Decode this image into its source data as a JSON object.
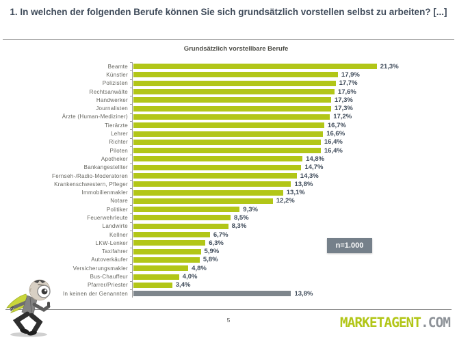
{
  "slide": {
    "title": "1. In welchen der folgenden Berufe können Sie sich grundsätzlich vorstellen selbst zu arbeiten? [...]",
    "page_number": "5",
    "logo": {
      "primary": "MARKETAGENT",
      "suffix": ".COM"
    }
  },
  "chart_data": {
    "type": "bar",
    "orientation": "horizontal",
    "title": "Grundsätzlich vorstellbare Berufe",
    "sample_size_label": "n=1.000",
    "xlim": [
      0,
      21.5
    ],
    "grid": false,
    "legend": false,
    "categories": [
      "Beamte",
      "Künstler",
      "Polizisten",
      "Rechtsanwälte",
      "Handwerker",
      "Journalisten",
      "Ärzte (Human-Mediziner)",
      "Tierärzte",
      "Lehrer",
      "Richter",
      "Piloten",
      "Apotheker",
      "Bankangestellter",
      "Fernseh-/Radio-Moderatoren",
      "Krankenschwestern, Pfleger",
      "Immobilienmakler",
      "Notare",
      "Politiker",
      "Feuerwehrleute",
      "Landwirte",
      "Kellner",
      "LKW-Lenker",
      "Taxifahrer",
      "Autoverkäufer",
      "Versicherungsmakler",
      "Bus-Chauffeur",
      "Pfarrer/Priester",
      "In keinen der Genannten"
    ],
    "values": [
      21.3,
      17.9,
      17.7,
      17.6,
      17.3,
      17.3,
      17.2,
      16.7,
      16.6,
      16.4,
      16.4,
      14.8,
      14.7,
      14.3,
      13.8,
      13.1,
      12.2,
      9.3,
      8.5,
      8.3,
      6.7,
      6.3,
      5.9,
      5.8,
      4.8,
      4.0,
      3.4,
      13.8
    ],
    "value_labels": [
      "21,3%",
      "17,9%",
      "17,7%",
      "17,6%",
      "17,3%",
      "17,3%",
      "17,2%",
      "16,7%",
      "16,6%",
      "16,4%",
      "16,4%",
      "14,8%",
      "14,7%",
      "14,3%",
      "13,8%",
      "13,1%",
      "12,2%",
      "9,3%",
      "8,5%",
      "8,3%",
      "6,7%",
      "6,3%",
      "5,9%",
      "5,8%",
      "4,8%",
      "4,0%",
      "3,4%",
      "13,8%"
    ],
    "gray_indices": [
      27
    ],
    "colors": {
      "bar": "#b2c618",
      "other_bar": "#7e868c",
      "value_text": "#3e4a59",
      "badge_bg": "#75808a",
      "axis": "#9a9a9a"
    }
  }
}
